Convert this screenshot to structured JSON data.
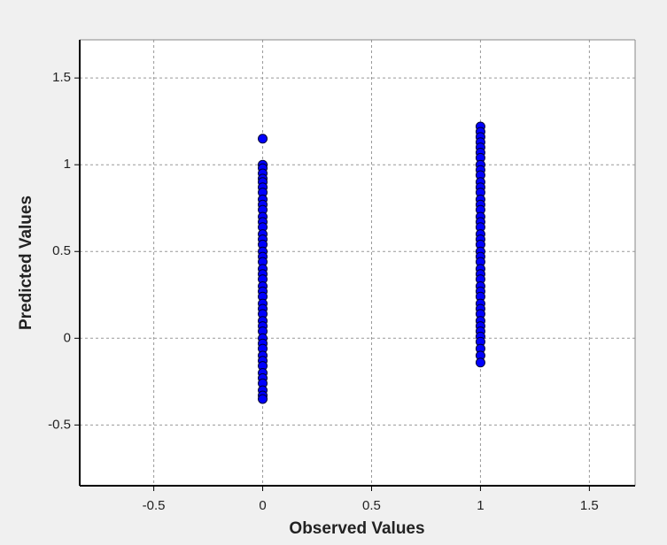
{
  "chart_data": {
    "type": "scatter",
    "x_label": "Observed Values",
    "y_label": "Predicted Values",
    "color": "#0000ff",
    "x": [
      0,
      0,
      0,
      0,
      0,
      0,
      0,
      0,
      0,
      0,
      0,
      0,
      0,
      0,
      0,
      0,
      0,
      0,
      0,
      0,
      0,
      0,
      0,
      0,
      0,
      0,
      0,
      0,
      0,
      0,
      0,
      0,
      0,
      0,
      0,
      0,
      0,
      0,
      0,
      0,
      0,
      0,
      0,
      0,
      1,
      1,
      1,
      1,
      1,
      1,
      1,
      1,
      1,
      1,
      1,
      1,
      1,
      1,
      1,
      1,
      1,
      1,
      1,
      1,
      1,
      1,
      1,
      1,
      1,
      1,
      1,
      1,
      1,
      1,
      1,
      1,
      1,
      1,
      1,
      1,
      1,
      1,
      1,
      1,
      1,
      1
    ],
    "values": [
      1.15,
      1.0,
      0.98,
      0.95,
      0.92,
      0.9,
      0.87,
      0.84,
      0.8,
      0.77,
      0.74,
      0.7,
      0.67,
      0.64,
      0.6,
      0.57,
      0.54,
      0.5,
      0.47,
      0.44,
      0.4,
      0.37,
      0.34,
      0.3,
      0.27,
      0.24,
      0.2,
      0.17,
      0.14,
      0.1,
      0.07,
      0.04,
      0.0,
      -0.03,
      -0.06,
      -0.1,
      -0.13,
      -0.16,
      -0.2,
      -0.23,
      -0.26,
      -0.3,
      -0.33,
      -0.35,
      1.22,
      1.19,
      1.16,
      1.13,
      1.1,
      1.07,
      1.04,
      1.0,
      0.97,
      0.94,
      0.9,
      0.87,
      0.84,
      0.8,
      0.77,
      0.74,
      0.7,
      0.67,
      0.64,
      0.6,
      0.57,
      0.54,
      0.5,
      0.47,
      0.44,
      0.4,
      0.37,
      0.34,
      0.3,
      0.27,
      0.24,
      0.2,
      0.17,
      0.14,
      0.1,
      0.07,
      0.04,
      0.01,
      -0.02,
      -0.06,
      -0.1,
      -0.14
    ],
    "xlim": [
      -0.84,
      1.71
    ],
    "ylim": [
      -0.85,
      1.72
    ],
    "xticks": [
      -0.5,
      0,
      0.5,
      1,
      1.5
    ],
    "yticks": [
      -0.5,
      0,
      0.5,
      1,
      1.5
    ],
    "grid": true
  }
}
